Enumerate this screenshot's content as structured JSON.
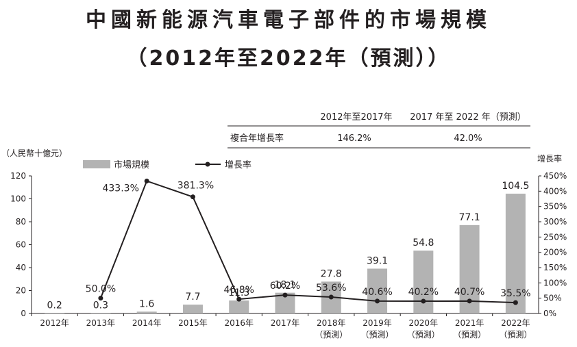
{
  "title_line1": "中國新能源汽車電子部件的市場規模",
  "title_line2": "（2012年至2022年（預測））",
  "summary_table": {
    "col1": "2012年至2017年",
    "col2": "2017 年至 2022 年（預測）",
    "row_label": "複合年增長率",
    "val1": "146.2%",
    "val2": "42.0%"
  },
  "chart_data": {
    "type": "bar",
    "ylabel_left": "（人民幣十億元）",
    "ylabel_right": "增長率",
    "legend": {
      "bar": "市場規模",
      "line": "增長率"
    },
    "categories": [
      [
        "2012年"
      ],
      [
        "2013年"
      ],
      [
        "2014年"
      ],
      [
        "2015年"
      ],
      [
        "2016年"
      ],
      [
        "2017年"
      ],
      [
        "2018年",
        "（預測）"
      ],
      [
        "2019年",
        "（預測）"
      ],
      [
        "2020年",
        "（預測）"
      ],
      [
        "2021年",
        "（預測）"
      ],
      [
        "2022年",
        "（預測）"
      ]
    ],
    "series": [
      {
        "name": "市場規模",
        "type": "bar",
        "axis": "left",
        "values": [
          0.2,
          0.3,
          1.6,
          7.7,
          11.3,
          18.1,
          27.8,
          39.1,
          54.8,
          77.1,
          104.5
        ],
        "labels": [
          "0.2",
          "0.3",
          "1.6",
          "7.7",
          "11.3",
          "18.1",
          "27.8",
          "39.1",
          "54.8",
          "77.1",
          "104.5"
        ]
      },
      {
        "name": "增長率",
        "type": "line",
        "axis": "right",
        "values": [
          null,
          50.0,
          433.3,
          381.3,
          46.8,
          60.2,
          53.6,
          40.6,
          40.2,
          40.7,
          35.5
        ],
        "labels": [
          null,
          "50.0%",
          "433.3%",
          "381.3%",
          "46.8%",
          "60.2%",
          "53.6%",
          "40.6%",
          "40.2%",
          "40.7%",
          "35.5%"
        ]
      }
    ],
    "ylim_left": [
      0,
      120
    ],
    "yticks_left": [
      "0",
      "20",
      "40",
      "60",
      "80",
      "100",
      "120"
    ],
    "ylim_right": [
      0,
      450
    ],
    "yticks_right": [
      "0%",
      "50%",
      "100%",
      "150%",
      "200%",
      "250%",
      "300%",
      "350%",
      "400%",
      "450%"
    ],
    "grid": false,
    "legend_placement": "top-left",
    "colors": {
      "bar": "#b3b3b3",
      "line": "#231f20"
    }
  }
}
